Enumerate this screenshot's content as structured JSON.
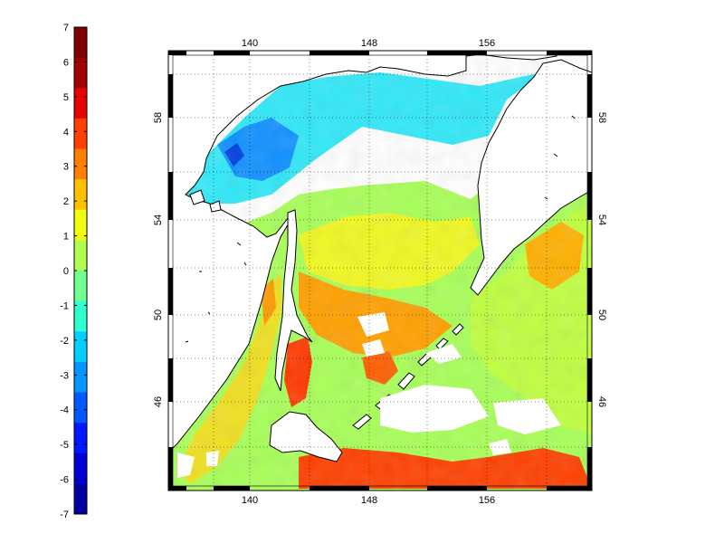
{
  "colorbar": {
    "min": -7,
    "max": 7,
    "labels": [
      "7",
      "6",
      "5",
      "4",
      "3",
      "2",
      "1",
      "0",
      "-1",
      "-2",
      "-3",
      "-4",
      "-5",
      "-6",
      "-7"
    ],
    "colors": [
      "#0000a0",
      "#0000d8",
      "#0018ff",
      "#0058ff",
      "#0098ff",
      "#00d0ff",
      "#30ffd0",
      "#70ff90",
      "#b0ff50",
      "#f0ff10",
      "#ffc000",
      "#ff8000",
      "#ff4000",
      "#e80000",
      "#a00000",
      "#800000"
    ]
  },
  "map": {
    "lon_ticks": [
      "140",
      "148",
      "156"
    ],
    "lat_ticks": [
      "58",
      "54",
      "50",
      "46"
    ],
    "land_color": "#ffffff",
    "coast_color": "#000000"
  }
}
